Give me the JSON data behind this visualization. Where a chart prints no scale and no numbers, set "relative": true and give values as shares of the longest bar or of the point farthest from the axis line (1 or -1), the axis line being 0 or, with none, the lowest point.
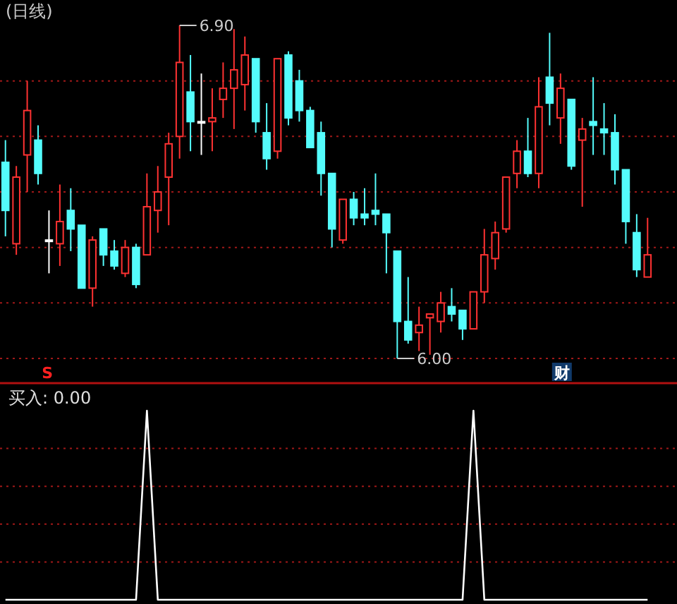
{
  "chart_data": [
    {
      "type": "candlestick",
      "title": "(日线)",
      "categories": [
        null,
        null,
        null,
        null,
        null,
        null,
        null,
        null,
        null,
        null,
        null,
        null,
        null,
        null,
        null,
        null,
        null,
        null,
        null,
        null,
        null,
        null,
        null,
        null,
        null,
        null,
        null,
        null,
        null,
        null,
        null,
        null,
        null,
        null,
        null,
        null,
        null,
        null,
        null,
        null,
        null,
        null,
        null,
        null,
        null,
        null,
        null,
        null,
        null,
        null,
        null,
        null,
        null,
        null,
        null,
        null,
        null,
        null,
        null,
        null
      ],
      "ohlc": [
        [
          6.53,
          6.59,
          6.33,
          6.4
        ],
        [
          6.31,
          6.52,
          6.28,
          6.49
        ],
        [
          6.55,
          6.75,
          6.45,
          6.67
        ],
        [
          6.59,
          6.63,
          6.47,
          6.5
        ],
        [
          6.32,
          6.4,
          6.23,
          6.32
        ],
        [
          6.31,
          6.47,
          6.25,
          6.37
        ],
        [
          6.4,
          6.46,
          6.29,
          6.35
        ],
        [
          6.36,
          6.36,
          6.19,
          6.19
        ],
        [
          6.19,
          6.33,
          6.14,
          6.32
        ],
        [
          6.35,
          6.35,
          6.25,
          6.28
        ],
        [
          6.29,
          6.32,
          6.24,
          6.25
        ],
        [
          6.23,
          6.32,
          6.22,
          6.3
        ],
        [
          6.3,
          6.31,
          6.19,
          6.2
        ],
        [
          6.28,
          6.5,
          6.28,
          6.41
        ],
        [
          6.4,
          6.52,
          6.34,
          6.45
        ],
        [
          6.49,
          6.61,
          6.36,
          6.58
        ],
        [
          6.6,
          6.9,
          6.54,
          6.8
        ],
        [
          6.72,
          6.82,
          6.56,
          6.64
        ],
        [
          6.64,
          6.77,
          6.55,
          6.64
        ],
        [
          6.64,
          6.73,
          6.56,
          6.65
        ],
        [
          6.7,
          6.8,
          6.65,
          6.73
        ],
        [
          6.73,
          6.89,
          6.62,
          6.78
        ],
        [
          6.74,
          6.87,
          6.67,
          6.82
        ],
        [
          6.81,
          6.81,
          6.61,
          6.64
        ],
        [
          6.61,
          6.69,
          6.51,
          6.54
        ],
        [
          6.56,
          6.81,
          6.54,
          6.81
        ],
        [
          6.82,
          6.83,
          6.63,
          6.65
        ],
        [
          6.75,
          6.78,
          6.64,
          6.67
        ],
        [
          6.67,
          6.68,
          6.57,
          6.57
        ],
        [
          6.61,
          6.64,
          6.44,
          6.5
        ],
        [
          6.5,
          6.5,
          6.3,
          6.35
        ],
        [
          6.32,
          6.43,
          6.31,
          6.43
        ],
        [
          6.43,
          6.45,
          6.36,
          6.38
        ],
        [
          6.39,
          6.46,
          6.36,
          6.38
        ],
        [
          6.4,
          6.5,
          6.36,
          6.39
        ],
        [
          6.39,
          6.39,
          6.23,
          6.34
        ],
        [
          6.29,
          6.29,
          6.0,
          6.1
        ],
        [
          6.1,
          6.22,
          6.04,
          6.05
        ],
        [
          6.07,
          6.14,
          6.02,
          6.09
        ],
        [
          6.11,
          6.12,
          6.01,
          6.12
        ],
        [
          6.1,
          6.18,
          6.07,
          6.15
        ],
        [
          6.14,
          6.19,
          6.1,
          6.12
        ],
        [
          6.13,
          6.13,
          6.05,
          6.08
        ],
        [
          6.08,
          6.18,
          6.08,
          6.18
        ],
        [
          6.18,
          6.35,
          6.15,
          6.28
        ],
        [
          6.27,
          6.37,
          6.24,
          6.34
        ],
        [
          6.35,
          6.49,
          6.34,
          6.49
        ],
        [
          6.5,
          6.59,
          6.46,
          6.56
        ],
        [
          6.56,
          6.65,
          6.49,
          6.5
        ],
        [
          6.5,
          6.76,
          6.46,
          6.68
        ],
        [
          6.76,
          6.88,
          6.63,
          6.69
        ],
        [
          6.65,
          6.77,
          6.58,
          6.73
        ],
        [
          6.7,
          6.7,
          6.51,
          6.52
        ],
        [
          6.59,
          6.65,
          6.41,
          6.62
        ],
        [
          6.64,
          6.76,
          6.55,
          6.63
        ],
        [
          6.62,
          6.69,
          6.55,
          6.61
        ],
        [
          6.61,
          6.66,
          6.47,
          6.51
        ],
        [
          6.51,
          6.51,
          6.31,
          6.37
        ],
        [
          6.34,
          6.39,
          6.22,
          6.24
        ],
        [
          6.22,
          6.38,
          6.22,
          6.28
        ]
      ],
      "colors": [
        "#54fcfc",
        "#ff3232",
        "#ff3232",
        "#54fcfc",
        "#ffffff",
        "#ff3232",
        "#54fcfc",
        "#54fcfc",
        "#ff3232",
        "#54fcfc",
        "#54fcfc",
        "#ff3232",
        "#54fcfc",
        "#ff3232",
        "#ff3232",
        "#ff3232",
        "#ff3232",
        "#54fcfc",
        "#ffffff",
        "#ff3232",
        "#ff3232",
        "#ff3232",
        "#ff3232",
        "#54fcfc",
        "#54fcfc",
        "#ff3232",
        "#54fcfc",
        "#54fcfc",
        "#54fcfc",
        "#54fcfc",
        "#54fcfc",
        "#ff3232",
        "#54fcfc",
        "#54fcfc",
        "#54fcfc",
        "#54fcfc",
        "#54fcfc",
        "#54fcfc",
        "#ff3232",
        "#ff3232",
        "#ff3232",
        "#54fcfc",
        "#54fcfc",
        "#ff3232",
        "#ff3232",
        "#ff3232",
        "#ff3232",
        "#ff3232",
        "#54fcfc",
        "#ff3232",
        "#54fcfc",
        "#ff3232",
        "#54fcfc",
        "#ff3232",
        "#54fcfc",
        "#54fcfc",
        "#54fcfc",
        "#54fcfc",
        "#54fcfc",
        "#ff3232"
      ],
      "yticks": [
        {
          "value": 6.0,
          "label": null
        },
        {
          "value": 6.15,
          "label": null
        },
        {
          "value": 6.3,
          "label": null
        },
        {
          "value": 6.45,
          "label": null
        },
        {
          "value": 6.6,
          "label": null
        },
        {
          "value": 6.75,
          "label": null
        }
      ],
      "grid": "y",
      "annotations": [
        "6.90",
        "6.00",
        "S",
        "财"
      ]
    },
    {
      "type": "line",
      "title": "买入: 0.00",
      "relative": true,
      "categories": [
        null,
        null,
        null,
        null,
        null,
        null,
        null,
        null,
        null,
        null,
        null,
        null,
        null,
        null,
        null,
        null,
        null,
        null,
        null,
        null,
        null,
        null,
        null,
        null,
        null,
        null,
        null,
        null,
        null,
        null,
        null,
        null,
        null,
        null,
        null,
        null,
        null,
        null,
        null,
        null,
        null,
        null,
        null,
        null,
        null,
        null,
        null,
        null,
        null,
        null,
        null,
        null,
        null,
        null,
        null,
        null,
        null,
        null,
        null,
        null
      ],
      "series": [
        {
          "color": "#ffffff",
          "values": [
            0,
            0,
            0,
            0,
            0,
            0,
            0,
            0,
            0,
            0,
            0,
            0,
            0,
            1,
            0,
            0,
            0,
            0,
            0,
            0,
            0,
            0,
            0,
            0,
            0,
            0,
            0,
            0,
            0,
            0,
            0,
            0,
            0,
            0,
            0,
            0,
            0,
            0,
            0,
            0,
            0,
            0,
            0,
            1,
            0,
            0,
            0,
            0,
            0,
            0,
            0,
            0,
            0,
            0,
            0,
            0,
            0,
            0,
            0,
            0
          ]
        }
      ],
      "ref_lines": [
        {
          "axis": "y",
          "value": 0.2,
          "color": "#a01818",
          "line_style": "dotted"
        },
        {
          "axis": "y",
          "value": 0.4,
          "color": "#a01818",
          "line_style": "dotted"
        },
        {
          "axis": "y",
          "value": 0.6,
          "color": "#a01818",
          "line_style": "dotted"
        },
        {
          "axis": "y",
          "value": 0.8,
          "color": "#a01818",
          "line_style": "dotted"
        }
      ]
    }
  ]
}
